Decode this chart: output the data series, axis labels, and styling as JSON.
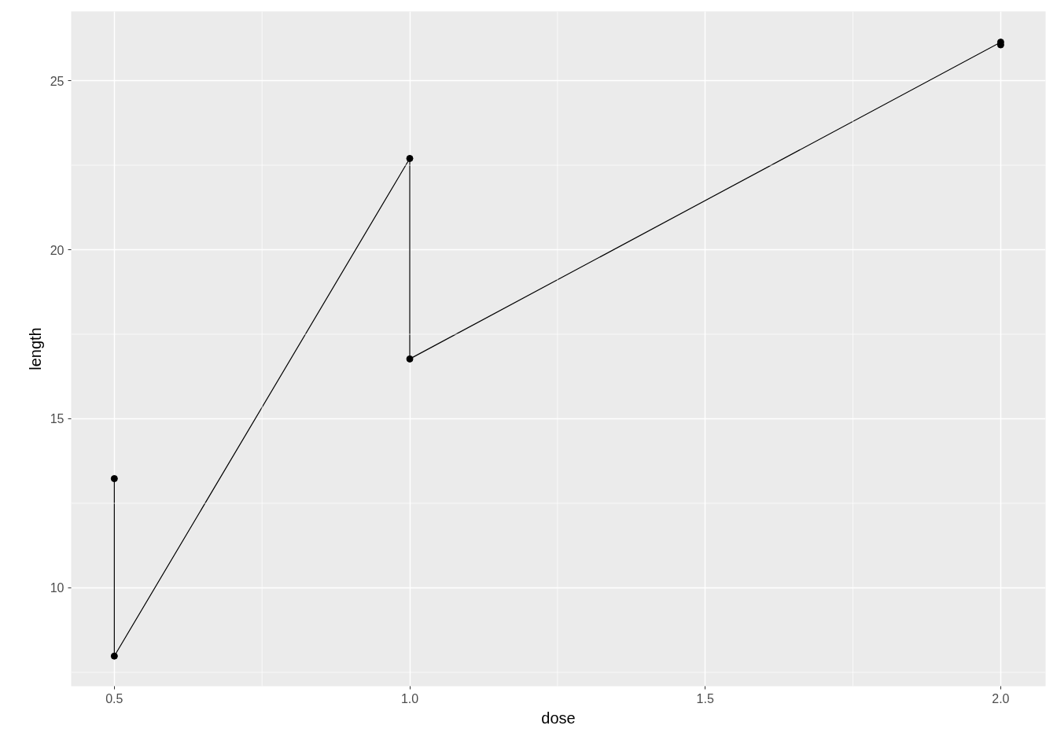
{
  "chart_data": {
    "type": "line",
    "xlabel": "dose",
    "ylabel": "length",
    "x": [
      0.5,
      0.5,
      1.0,
      1.0,
      2.0,
      2.0
    ],
    "series": [
      {
        "color": "#000000",
        "values": [
          13.23,
          7.98,
          22.7,
          16.77,
          26.14,
          26.06
        ]
      }
    ],
    "xlim": [
      0.427,
      2.076
    ],
    "xticks": [
      {
        "value": 0.5,
        "label": "0.5"
      },
      {
        "value": 1.0,
        "label": "1.0"
      },
      {
        "value": 1.5,
        "label": "1.5"
      },
      {
        "value": 2.0,
        "label": "2.0"
      }
    ],
    "ylim": [
      7.09,
      27.05
    ],
    "yticks": [
      10,
      15,
      20,
      25
    ],
    "grid": true,
    "marker": "circle",
    "line_style": "solid"
  }
}
